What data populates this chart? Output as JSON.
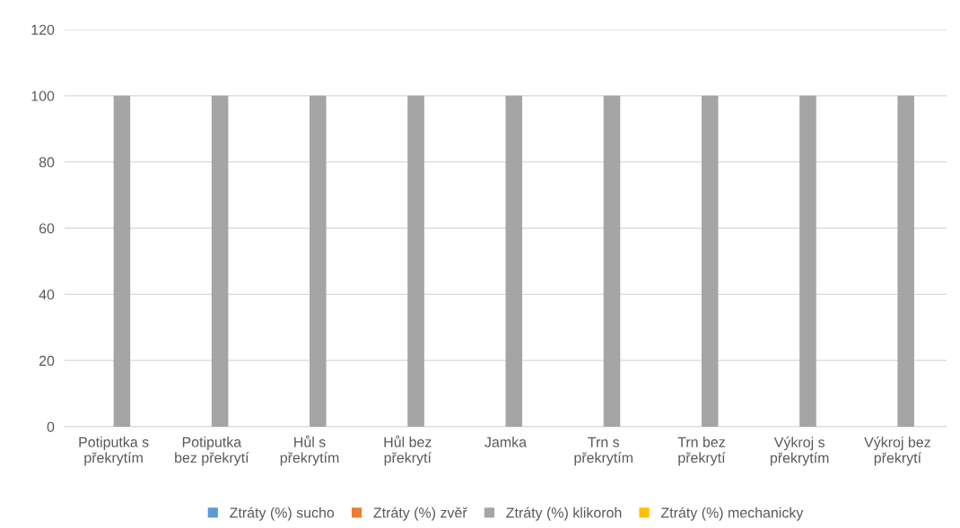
{
  "chart_data": {
    "type": "bar",
    "categories": [
      "Potiputka s\npřekrytím",
      "Potiputka\nbez překrytí",
      "Hůl s\npřekrytím",
      "Hůl bez\npřekrytí",
      "Jamka",
      "Trn s\npřekrytím",
      "Trn bez\npřekrytí",
      "Výkroj s\npřekrytím",
      "Výkroj bez\npřekrytí"
    ],
    "series": [
      {
        "name": "Ztráty (%) sucho",
        "color": "#5b9bd5",
        "values": [
          0,
          0,
          0,
          0,
          0,
          0,
          0,
          0,
          0
        ]
      },
      {
        "name": "Ztráty (%) zvěř",
        "color": "#ed7d31",
        "values": [
          0,
          0,
          0,
          0,
          0,
          0,
          0,
          0,
          0
        ]
      },
      {
        "name": "Ztráty (%) klikoroh",
        "color": "#a5a5a5",
        "values": [
          100,
          100,
          100,
          100,
          100,
          100,
          100,
          100,
          100
        ]
      },
      {
        "name": "Ztráty (%) mechanicky",
        "color": "#ffc000",
        "values": [
          0,
          0,
          0,
          0,
          0,
          0,
          0,
          0,
          0
        ]
      }
    ],
    "ylim": [
      0,
      120
    ],
    "yticks": [
      0,
      20,
      40,
      60,
      80,
      100,
      120
    ],
    "grid": "y",
    "legend": "bottom"
  }
}
